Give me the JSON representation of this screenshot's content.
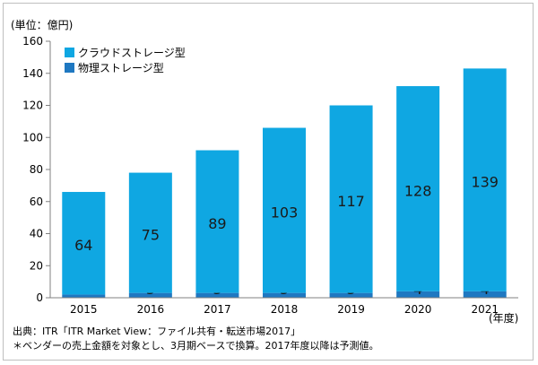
{
  "chart_data": {
    "type": "bar",
    "stacked": true,
    "unit_label": "(単位：億円)",
    "x_unit_label": "(年度)",
    "categories": [
      "2015",
      "2016",
      "2017",
      "2018",
      "2019",
      "2020",
      "2021"
    ],
    "series": [
      {
        "name": "物理ストレージ型",
        "values": [
          2,
          3,
          3,
          3,
          3,
          4,
          4
        ],
        "color": "#1f78c1"
      },
      {
        "name": "クラウドストレージ型",
        "values": [
          64,
          75,
          89,
          103,
          117,
          128,
          139
        ],
        "color": "#0fa7e2"
      }
    ],
    "ylim": [
      0,
      160
    ],
    "yticks": [
      0,
      20,
      40,
      60,
      80,
      100,
      120,
      140,
      160
    ],
    "grid": false,
    "legend_position": "top-left"
  },
  "notes": {
    "source": "出典：ITR「ITR Market View：ファイル共有・転送市場2017」",
    "footnote": "＊ベンダーの売上金額を対象とし、3月期ベースで換算。2017年度以降は予測値。"
  },
  "colors": {
    "axis": "#808080",
    "label_text": "#1a1a1a"
  }
}
